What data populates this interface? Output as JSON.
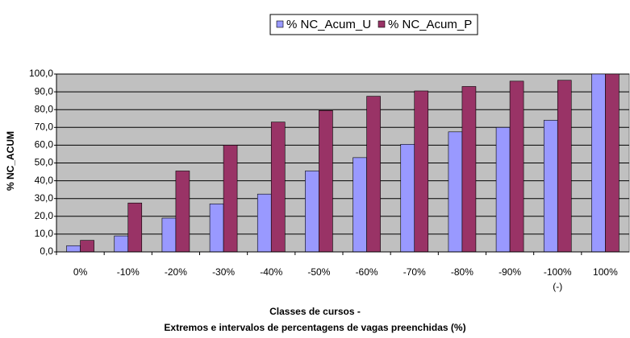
{
  "chart_data": {
    "type": "bar",
    "categories": [
      "0%",
      "-10%",
      "-20%",
      "-30%",
      "-40%",
      "-50%",
      "-60%",
      "-70%",
      "-80%",
      "-90%",
      "-100%\n(-)",
      "100%"
    ],
    "series": [
      {
        "name": "% NC_Acum_U",
        "color": "#9999ff",
        "values": [
          3.5,
          9,
          19,
          27,
          32.5,
          45.5,
          53,
          60.5,
          67.5,
          70,
          74,
          100
        ]
      },
      {
        "name": "% NC_Acum_P",
        "color": "#993366",
        "values": [
          6.5,
          27.5,
          45.5,
          60,
          73,
          79.5,
          87.5,
          90.5,
          93,
          96,
          96.5,
          100
        ]
      }
    ],
    "y_label": "% NC_ACUM",
    "x_label": [
      "Classes de cursos -",
      "Extremos e intervalos de percentagens de vagas preenchidas (%)"
    ],
    "ylim": [
      0,
      100
    ],
    "yticks": [
      {
        "value": 0,
        "label": "0,0"
      },
      {
        "value": 10,
        "label": "10,0"
      },
      {
        "value": 20,
        "label": "20,0"
      },
      {
        "value": 30,
        "label": "30,0"
      },
      {
        "value": 40,
        "label": "40,0"
      },
      {
        "value": 50,
        "label": "50,0"
      },
      {
        "value": 60,
        "label": "60,0"
      },
      {
        "value": 70,
        "label": "70,0"
      },
      {
        "value": 80,
        "label": "80,0"
      },
      {
        "value": 90,
        "label": "90,0"
      },
      {
        "value": 100,
        "label": "100,0"
      }
    ],
    "grid": true,
    "legend": "top",
    "plot_background": "#c0c0c0"
  }
}
